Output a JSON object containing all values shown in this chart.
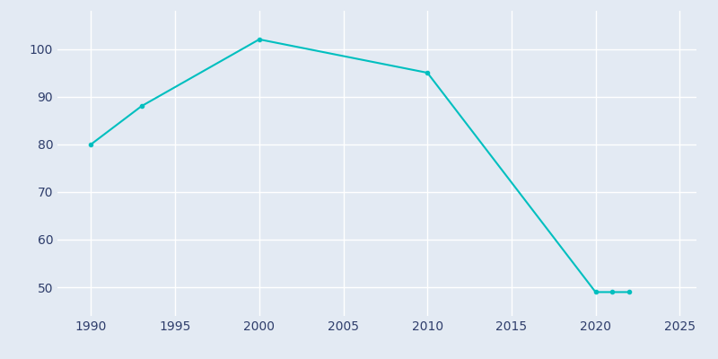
{
  "years": [
    1990,
    1993,
    2000,
    2010,
    2020,
    2021,
    2022
  ],
  "population": [
    80,
    88,
    102,
    95,
    49,
    49,
    49
  ],
  "line_color": "#00BFBF",
  "background_color": "#E3EAF3",
  "grid_color": "#FFFFFF",
  "text_color": "#2E3D6B",
  "xlabel": "",
  "ylabel": "",
  "xlim": [
    1988,
    2026
  ],
  "ylim": [
    44,
    108
  ],
  "xticks": [
    1990,
    1995,
    2000,
    2005,
    2010,
    2015,
    2020,
    2025
  ],
  "yticks": [
    50,
    60,
    70,
    80,
    90,
    100
  ],
  "linewidth": 1.5,
  "marker": "o",
  "marker_size": 3
}
